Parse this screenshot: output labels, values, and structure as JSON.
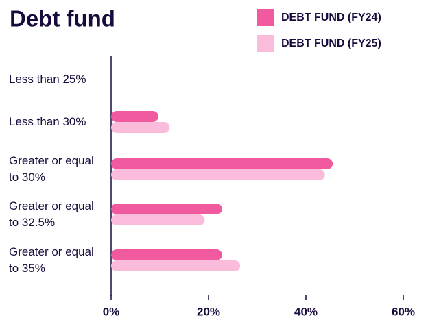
{
  "chart_data": {
    "type": "hbar",
    "title": "Debt fund",
    "categories": [
      "Less than 25%",
      "Less than 30%",
      "Greater or equal to 30%",
      "Greater or equal to 32.5%",
      "Greater or equal to 35%"
    ],
    "series": [
      {
        "name": "DEBT FUND (FY24)",
        "color": "#f25aa0",
        "values": [
          0,
          9.7,
          45.5,
          22.8,
          22.8
        ]
      },
      {
        "name": "DEBT FUND (FY25)",
        "color": "#fbbcdc",
        "values": [
          0,
          12,
          43.9,
          19.2,
          26.5
        ]
      }
    ],
    "xlim": [
      0,
      60
    ],
    "xticks": [
      {
        "value": 0,
        "label": "0%"
      },
      {
        "value": 20,
        "label": "20%"
      },
      {
        "value": 40,
        "label": "40%"
      },
      {
        "value": 60,
        "label": "60%"
      }
    ],
    "legend": "top-right"
  }
}
